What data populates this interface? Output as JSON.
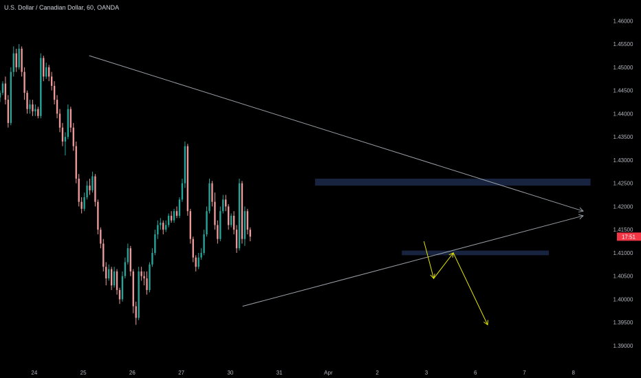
{
  "header": {
    "title": "U.S. Dollar / Canadian Dollar, 60, OANDA"
  },
  "current_price_tag": {
    "label": "17:51",
    "value": 1.4135,
    "color": "#f23645"
  },
  "colors": {
    "background": "#000000",
    "up": "#26a69a",
    "down": "#ef9a9a",
    "trendline": "#9aa0a6",
    "zone": "#1c2a4a",
    "projection": "#e6e600",
    "axis_text": "#b2b5be"
  },
  "chart_data": {
    "type": "candlestick",
    "title": "U.S. Dollar / Canadian Dollar, 60, OANDA",
    "y_axis": {
      "position": "right",
      "range": [
        1.386,
        1.4645
      ],
      "ticks": [
        "1.46000",
        "1.45500",
        "1.45000",
        "1.44500",
        "1.44000",
        "1.43500",
        "1.43000",
        "1.42500",
        "1.42000",
        "1.41500",
        "1.41000",
        "1.40500",
        "1.40000",
        "1.39500",
        "1.39000"
      ]
    },
    "x_axis": {
      "labels": [
        {
          "text": "24",
          "x": 0.4
        },
        {
          "text": "25",
          "x": 1.4
        },
        {
          "text": "26",
          "x": 2.4
        },
        {
          "text": "27",
          "x": 3.4
        },
        {
          "text": "30",
          "x": 4.4
        },
        {
          "text": "31",
          "x": 5.4
        },
        {
          "text": "Apr",
          "x": 6.4
        },
        {
          "text": "2",
          "x": 7.4
        },
        {
          "text": "3",
          "x": 8.4
        },
        {
          "text": "6",
          "x": 9.4
        },
        {
          "text": "7",
          "x": 10.4
        },
        {
          "text": "8",
          "x": 11.4
        }
      ],
      "range": [
        -0.3,
        12.05
      ]
    },
    "candles_x_start": -0.3,
    "candles_x_step": 0.0555,
    "candles": [
      [
        1.4435,
        1.445,
        1.4425,
        1.4445
      ],
      [
        1.4445,
        1.447,
        1.444,
        1.4465
      ],
      [
        1.4465,
        1.448,
        1.442,
        1.443
      ],
      [
        1.443,
        1.444,
        1.437,
        1.438
      ],
      [
        1.438,
        1.45,
        1.4375,
        1.449
      ],
      [
        1.449,
        1.4545,
        1.448,
        1.453
      ],
      [
        1.453,
        1.454,
        1.449,
        1.45
      ],
      [
        1.45,
        1.455,
        1.4495,
        1.454
      ],
      [
        1.454,
        1.4545,
        1.448,
        1.449
      ],
      [
        1.449,
        1.45,
        1.443,
        1.4445
      ],
      [
        1.4445,
        1.445,
        1.44,
        1.441
      ],
      [
        1.441,
        1.443,
        1.44,
        1.442
      ],
      [
        1.442,
        1.443,
        1.4395,
        1.4405
      ],
      [
        1.4405,
        1.442,
        1.4395,
        1.441
      ],
      [
        1.441,
        1.4415,
        1.439,
        1.4395
      ],
      [
        1.4395,
        1.453,
        1.439,
        1.452
      ],
      [
        1.452,
        1.4525,
        1.447,
        1.448
      ],
      [
        1.448,
        1.451,
        1.4475,
        1.45
      ],
      [
        1.45,
        1.4505,
        1.447,
        1.448
      ],
      [
        1.448,
        1.449,
        1.445,
        1.446
      ],
      [
        1.446,
        1.447,
        1.442,
        1.443
      ],
      [
        1.443,
        1.444,
        1.439,
        1.44
      ],
      [
        1.44,
        1.441,
        1.436,
        1.437
      ],
      [
        1.437,
        1.438,
        1.433,
        1.434
      ],
      [
        1.434,
        1.436,
        1.431,
        1.435
      ],
      [
        1.435,
        1.442,
        1.4345,
        1.441
      ],
      [
        1.441,
        1.4415,
        1.436,
        1.437
      ],
      [
        1.437,
        1.438,
        1.432,
        1.433
      ],
      [
        1.433,
        1.434,
        1.425,
        1.426
      ],
      [
        1.426,
        1.427,
        1.42,
        1.421
      ],
      [
        1.421,
        1.422,
        1.4185,
        1.4195
      ],
      [
        1.4195,
        1.423,
        1.419,
        1.422
      ],
      [
        1.422,
        1.4255,
        1.4215,
        1.4245
      ],
      [
        1.4245,
        1.426,
        1.4225,
        1.4235
      ],
      [
        1.4235,
        1.4275,
        1.423,
        1.4265
      ],
      [
        1.4265,
        1.427,
        1.42,
        1.421
      ],
      [
        1.421,
        1.4215,
        1.414,
        1.415
      ],
      [
        1.415,
        1.4155,
        1.411,
        1.412
      ],
      [
        1.412,
        1.413,
        1.406,
        1.407
      ],
      [
        1.407,
        1.408,
        1.403,
        1.4045
      ],
      [
        1.4045,
        1.4075,
        1.404,
        1.4065
      ],
      [
        1.4065,
        1.407,
        1.402,
        1.403
      ],
      [
        1.403,
        1.407,
        1.4025,
        1.406
      ],
      [
        1.406,
        1.4065,
        1.401,
        1.402
      ],
      [
        1.402,
        1.4025,
        1.399,
        1.4
      ],
      [
        1.4,
        1.406,
        1.3995,
        1.405
      ],
      [
        1.405,
        1.409,
        1.4045,
        1.408
      ],
      [
        1.408,
        1.412,
        1.4075,
        1.411
      ],
      [
        1.411,
        1.4115,
        1.405,
        1.406
      ],
      [
        1.406,
        1.4065,
        1.397,
        1.3985
      ],
      [
        1.3985,
        1.3995,
        1.3945,
        1.396
      ],
      [
        1.396,
        1.407,
        1.3955,
        1.406
      ],
      [
        1.406,
        1.407,
        1.404,
        1.405
      ],
      [
        1.405,
        1.406,
        1.403,
        1.4045
      ],
      [
        1.4045,
        1.406,
        1.401,
        1.402
      ],
      [
        1.402,
        1.408,
        1.4015,
        1.4075
      ],
      [
        1.4075,
        1.411,
        1.407,
        1.41
      ],
      [
        1.41,
        1.415,
        1.4095,
        1.414
      ],
      [
        1.414,
        1.417,
        1.413,
        1.416
      ],
      [
        1.416,
        1.4175,
        1.415,
        1.4165
      ],
      [
        1.4165,
        1.417,
        1.414,
        1.415
      ],
      [
        1.415,
        1.417,
        1.4145,
        1.416
      ],
      [
        1.416,
        1.4185,
        1.4155,
        1.418
      ],
      [
        1.418,
        1.419,
        1.4165,
        1.417
      ],
      [
        1.417,
        1.4195,
        1.4165,
        1.419
      ],
      [
        1.419,
        1.42,
        1.4175,
        1.418
      ],
      [
        1.418,
        1.422,
        1.4175,
        1.4215
      ],
      [
        1.4215,
        1.426,
        1.421,
        1.425
      ],
      [
        1.425,
        1.434,
        1.424,
        1.433
      ],
      [
        1.433,
        1.4335,
        1.418,
        1.419
      ],
      [
        1.419,
        1.4195,
        1.412,
        1.413
      ],
      [
        1.413,
        1.4135,
        1.408,
        1.409
      ],
      [
        1.409,
        1.4095,
        1.406,
        1.407
      ],
      [
        1.407,
        1.41,
        1.4065,
        1.409
      ],
      [
        1.409,
        1.411,
        1.4085,
        1.41
      ],
      [
        1.41,
        1.415,
        1.4095,
        1.414
      ],
      [
        1.414,
        1.42,
        1.4135,
        1.419
      ],
      [
        1.419,
        1.426,
        1.4185,
        1.425
      ],
      [
        1.425,
        1.4255,
        1.42,
        1.421
      ],
      [
        1.421,
        1.423,
        1.415,
        1.416
      ],
      [
        1.416,
        1.417,
        1.412,
        1.413
      ],
      [
        1.413,
        1.42,
        1.4125,
        1.419
      ],
      [
        1.419,
        1.4225,
        1.4185,
        1.4215
      ],
      [
        1.4215,
        1.4225,
        1.419,
        1.42
      ],
      [
        1.42,
        1.4205,
        1.415,
        1.416
      ],
      [
        1.416,
        1.4185,
        1.4155,
        1.418
      ],
      [
        1.418,
        1.419,
        1.414,
        1.415
      ],
      [
        1.415,
        1.416,
        1.41,
        1.411
      ],
      [
        1.411,
        1.426,
        1.4105,
        1.425
      ],
      [
        1.425,
        1.4255,
        1.412,
        1.413
      ],
      [
        1.413,
        1.42,
        1.4115,
        1.419
      ],
      [
        1.419,
        1.4195,
        1.414,
        1.415
      ],
      [
        1.415,
        1.4155,
        1.4125,
        1.4135
      ]
    ],
    "annotations": {
      "trendlines": [
        {
          "from": [
            1.52,
            1.4525
          ],
          "to": [
            11.6,
            1.419
          ],
          "arrow": true
        },
        {
          "from": [
            4.65,
            1.3985
          ],
          "to": [
            11.6,
            1.418
          ],
          "arrow": true
        }
      ],
      "zones": [
        {
          "x0": 6.13,
          "x1": 11.75,
          "y0": 1.4245,
          "y1": 1.426
        },
        {
          "x0": 7.9,
          "x1": 10.9,
          "y0": 1.4095,
          "y1": 1.4105
        }
      ],
      "projection": [
        [
          8.35,
          1.4125
        ],
        [
          8.55,
          1.4045
        ],
        [
          8.95,
          1.41
        ],
        [
          9.65,
          1.3945
        ]
      ]
    }
  }
}
